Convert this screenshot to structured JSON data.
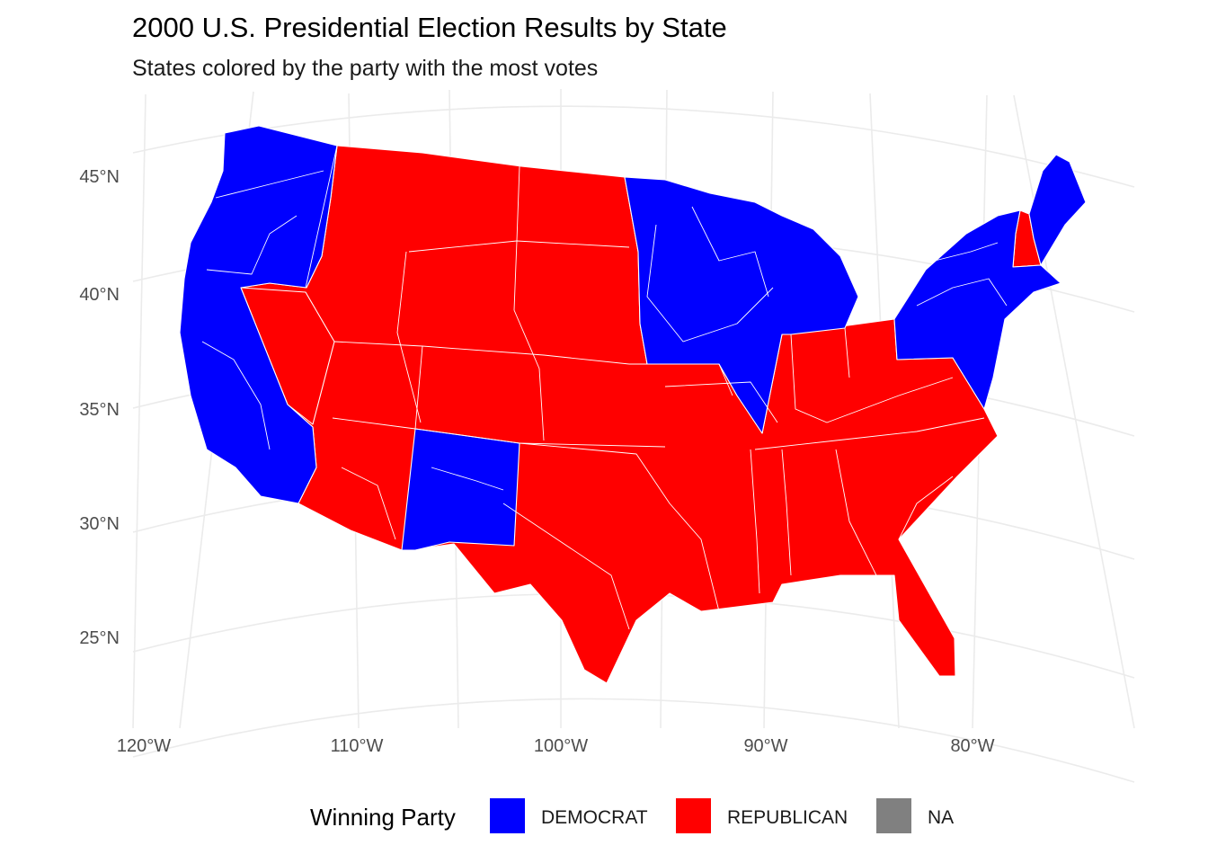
{
  "title": "2000 U.S. Presidential Election Results by State",
  "subtitle": "States colored by the party with the most votes",
  "axes": {
    "latitude_labels": [
      "45°N",
      "40°N",
      "35°N",
      "30°N",
      "25°N"
    ],
    "longitude_labels": [
      "120°W",
      "110°W",
      "100°W",
      "90°W",
      "80°W"
    ]
  },
  "legend": {
    "title": "Winning Party",
    "placement": "bottom",
    "items": [
      {
        "label": "DEMOCRAT",
        "color": "#0000ff"
      },
      {
        "label": "REPUBLICAN",
        "color": "#ff0000"
      },
      {
        "label": "NA",
        "color": "#808080"
      }
    ]
  },
  "colors": {
    "democrat": "#0000ff",
    "republican": "#ff0000",
    "na": "#808080",
    "boundary": "#ffffff",
    "graticule": "#ebebeb"
  },
  "map": {
    "projection": "conic",
    "extent": "contiguous United States",
    "regions": [
      {
        "name": "Washington",
        "party": "DEMOCRAT"
      },
      {
        "name": "Oregon",
        "party": "DEMOCRAT"
      },
      {
        "name": "California",
        "party": "DEMOCRAT"
      },
      {
        "name": "Idaho",
        "party": "REPUBLICAN"
      },
      {
        "name": "Montana",
        "party": "REPUBLICAN"
      },
      {
        "name": "Nevada",
        "party": "REPUBLICAN"
      },
      {
        "name": "Utah",
        "party": "REPUBLICAN"
      },
      {
        "name": "Wyoming",
        "party": "REPUBLICAN"
      },
      {
        "name": "Arizona",
        "party": "REPUBLICAN"
      },
      {
        "name": "Colorado",
        "party": "REPUBLICAN"
      },
      {
        "name": "New Mexico",
        "party": "DEMOCRAT"
      },
      {
        "name": "North Dakota",
        "party": "REPUBLICAN"
      },
      {
        "name": "South Dakota",
        "party": "REPUBLICAN"
      },
      {
        "name": "Nebraska",
        "party": "REPUBLICAN"
      },
      {
        "name": "Kansas",
        "party": "REPUBLICAN"
      },
      {
        "name": "Oklahoma",
        "party": "REPUBLICAN"
      },
      {
        "name": "Texas",
        "party": "REPUBLICAN"
      },
      {
        "name": "Minnesota",
        "party": "DEMOCRAT"
      },
      {
        "name": "Iowa",
        "party": "DEMOCRAT"
      },
      {
        "name": "Wisconsin",
        "party": "DEMOCRAT"
      },
      {
        "name": "Illinois",
        "party": "DEMOCRAT"
      },
      {
        "name": "Michigan",
        "party": "DEMOCRAT"
      },
      {
        "name": "Missouri",
        "party": "REPUBLICAN"
      },
      {
        "name": "Arkansas",
        "party": "REPUBLICAN"
      },
      {
        "name": "Louisiana",
        "party": "REPUBLICAN"
      },
      {
        "name": "Indiana",
        "party": "REPUBLICAN"
      },
      {
        "name": "Ohio",
        "party": "REPUBLICAN"
      },
      {
        "name": "Kentucky",
        "party": "REPUBLICAN"
      },
      {
        "name": "Tennessee",
        "party": "REPUBLICAN"
      },
      {
        "name": "Mississippi",
        "party": "REPUBLICAN"
      },
      {
        "name": "Alabama",
        "party": "REPUBLICAN"
      },
      {
        "name": "Georgia",
        "party": "REPUBLICAN"
      },
      {
        "name": "Florida",
        "party": "REPUBLICAN"
      },
      {
        "name": "South Carolina",
        "party": "REPUBLICAN"
      },
      {
        "name": "North Carolina",
        "party": "REPUBLICAN"
      },
      {
        "name": "Virginia",
        "party": "REPUBLICAN"
      },
      {
        "name": "West Virginia",
        "party": "REPUBLICAN"
      },
      {
        "name": "Pennsylvania",
        "party": "DEMOCRAT"
      },
      {
        "name": "New York",
        "party": "DEMOCRAT"
      },
      {
        "name": "Maryland",
        "party": "DEMOCRAT"
      },
      {
        "name": "New Jersey",
        "party": "DEMOCRAT"
      },
      {
        "name": "Vermont",
        "party": "DEMOCRAT"
      },
      {
        "name": "New Hampshire",
        "party": "REPUBLICAN"
      },
      {
        "name": "Maine",
        "party": "DEMOCRAT"
      },
      {
        "name": "Massachusetts",
        "party": "DEMOCRAT"
      }
    ]
  }
}
